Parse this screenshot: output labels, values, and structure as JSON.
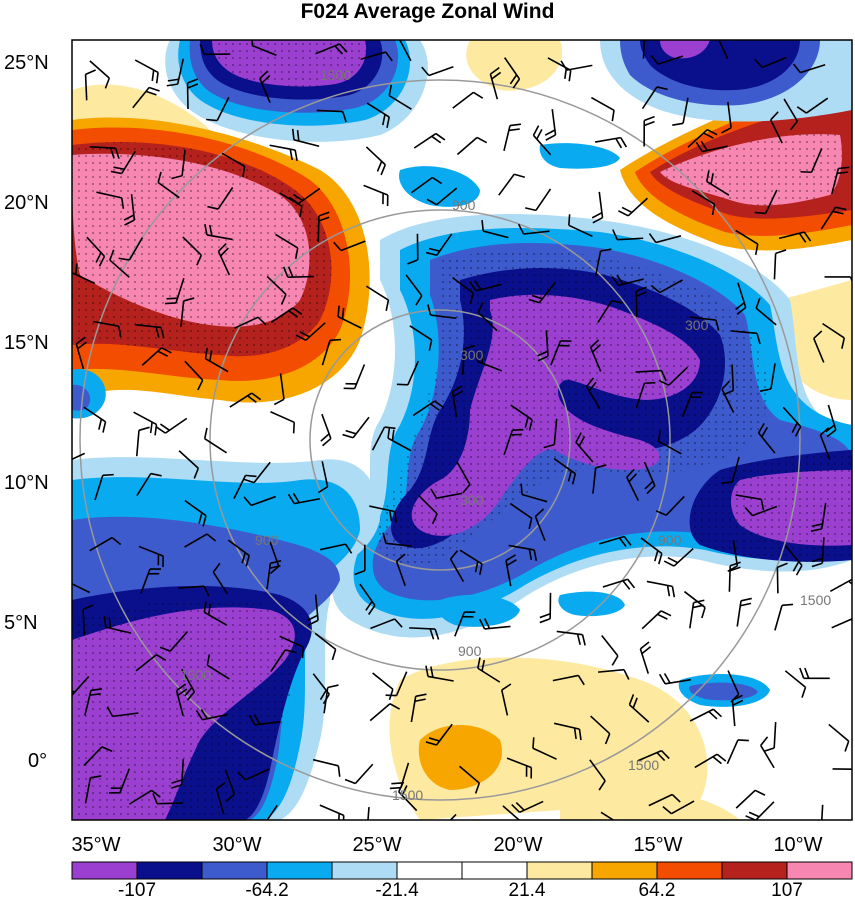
{
  "title": "F024 Average Zonal Wind",
  "lat_labels": [
    "25°N",
    "20°N",
    "15°N",
    "10°N",
    "5°N",
    "0°"
  ],
  "lon_labels": [
    "35°W",
    "30°W",
    "25°W",
    "20°W",
    "15°W",
    "10°W"
  ],
  "colorbar": {
    "colors": [
      "#9b3fd1",
      "#0a0f8c",
      "#3d5bcc",
      "#0aaaf0",
      "#aedcf5",
      "#ffffff",
      "#ffffff",
      "#fde9a0",
      "#f7a600",
      "#f24d00",
      "#b5221e",
      "#f786b0"
    ],
    "tick_labels": [
      "-107",
      "-64.2",
      "-21.4",
      "21.4",
      "64.2",
      "107"
    ]
  },
  "range_ring_labels": [
    "300",
    "900",
    "1500",
    "300",
    "900",
    "1500",
    "1500",
    "900",
    "300",
    "900",
    "1500",
    "1500"
  ]
}
